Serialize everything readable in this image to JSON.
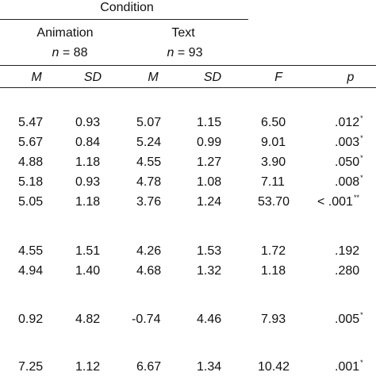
{
  "header": {
    "condition": "Condition",
    "groups": [
      {
        "label": "Animation",
        "n_label": "n",
        "n_value": "= 88"
      },
      {
        "label": "Text",
        "n_label": "n",
        "n_value": "= 93"
      }
    ],
    "columns": [
      "M",
      "SD",
      "M",
      "SD",
      "F",
      "p"
    ]
  },
  "rows": [
    {
      "m1": "5.47",
      "sd1": "0.93",
      "m2": "5.07",
      "sd2": "1.15",
      "f": "6.50",
      "p": ".012",
      "sig": "*"
    },
    {
      "m1": "5.67",
      "sd1": "0.84",
      "m2": "5.24",
      "sd2": "0.99",
      "f": "9.01",
      "p": ".003",
      "sig": "*"
    },
    {
      "m1": "4.88",
      "sd1": "1.18",
      "m2": "4.55",
      "sd2": "1.27",
      "f": "3.90",
      "p": ".050",
      "sig": "*"
    },
    {
      "m1": "5.18",
      "sd1": "0.93",
      "m2": "4.78",
      "sd2": "1.08",
      "f": "7.11",
      "p": ".008",
      "sig": "*"
    },
    {
      "m1": "5.05",
      "sd1": "1.18",
      "m2": "3.76",
      "sd2": "1.24",
      "f": "53.70",
      "p": "< .001",
      "sig": "**"
    },
    {
      "m1": "4.55",
      "sd1": "1.51",
      "m2": "4.26",
      "sd2": "1.53",
      "f": "1.72",
      "p": ".192",
      "sig": ""
    },
    {
      "m1": "4.94",
      "sd1": "1.40",
      "m2": "4.68",
      "sd2": "1.32",
      "f": "1.18",
      "p": ".280",
      "sig": ""
    },
    {
      "m1": "0.92",
      "sd1": "4.82",
      "m2": "-0.74",
      "sd2": "4.46",
      "f": "7.93",
      "p": ".005",
      "sig": "*"
    },
    {
      "m1": "7.25",
      "sd1": "1.12",
      "m2": "6.67",
      "sd2": "1.34",
      "f": "10.42",
      "p": ".001",
      "sig": "*"
    }
  ]
}
